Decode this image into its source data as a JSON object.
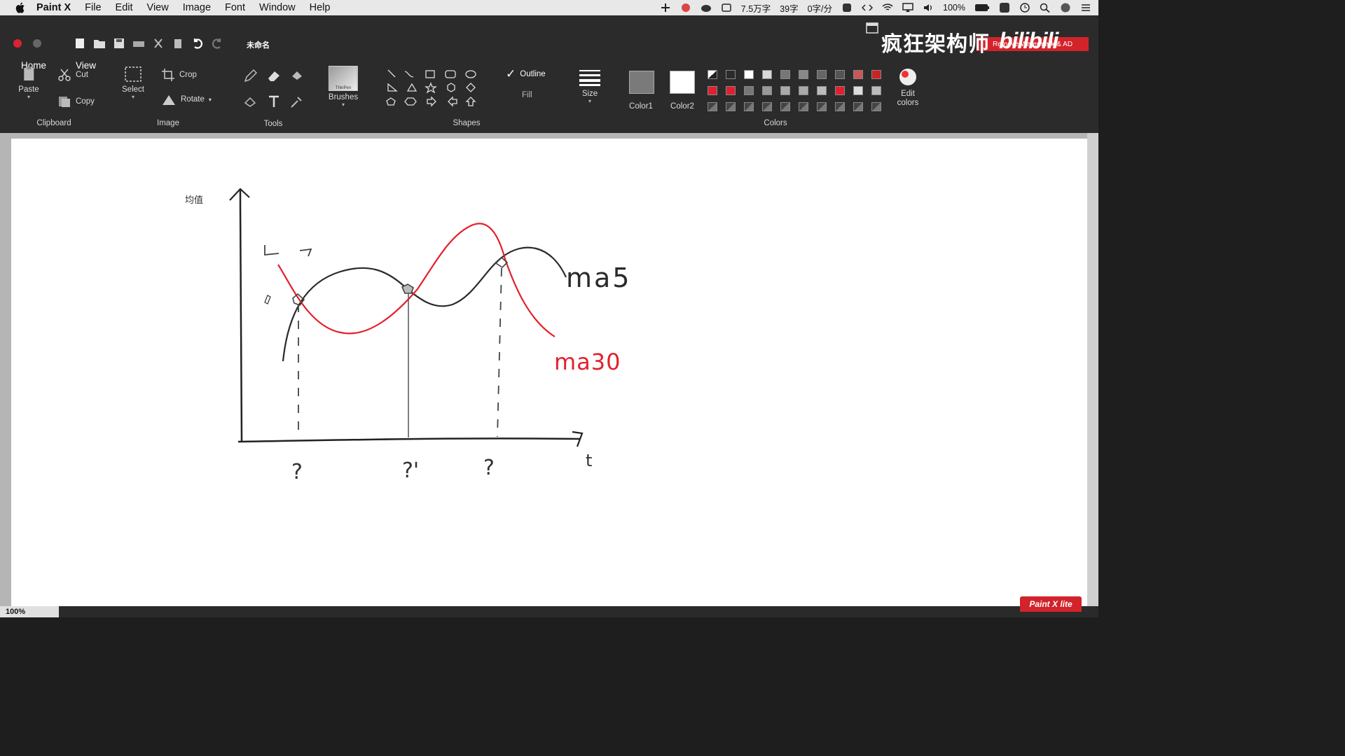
{
  "menubar": {
    "app": "Paint X",
    "items": [
      "File",
      "Edit",
      "View",
      "Image",
      "Font",
      "Window",
      "Help"
    ],
    "tray": {
      "word_count": "7.5万字",
      "char_count": "39字",
      "rate": "0字/分",
      "battery": "100%"
    }
  },
  "document": {
    "title": "未命名"
  },
  "tabs": [
    "Home",
    "View"
  ],
  "ribbon": {
    "clipboard": {
      "label": "Clipboard",
      "paste": "Paste",
      "cut": "Cut",
      "copy": "Copy"
    },
    "image": {
      "label": "Image",
      "select": "Select",
      "crop": "Crop",
      "rotate": "Rotate"
    },
    "tools": {
      "label": "Tools"
    },
    "brushes": {
      "label": "Brushes",
      "preview": "ThinPen"
    },
    "shapes": {
      "label": "Shapes",
      "outline": "Outline",
      "fill": "Fill"
    },
    "size": {
      "label": "Size"
    },
    "colors": {
      "label": "Colors",
      "color1": "Color1",
      "color2": "Color2",
      "edit": "Edit colors",
      "color1_hex": "#7a7a7a",
      "color2_hex": "#ffffff"
    }
  },
  "watermark": {
    "remove": "Remove Watermark & AD",
    "channel": "疯狂架构师",
    "site": "bilibili"
  },
  "drawing": {
    "y_axis_label": "均值",
    "x_axis_label": "t",
    "arrows": "← →",
    "black_curve_label": "ma5",
    "red_curve_label": "ma30",
    "crossings": [
      "?",
      "?'",
      "?"
    ]
  },
  "status": {
    "zoom": "100%",
    "badge": "Paint X lite"
  }
}
